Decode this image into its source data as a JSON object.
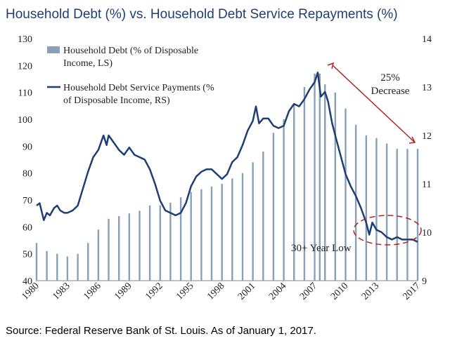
{
  "chart_data": {
    "type": "bar",
    "title": "Household Debt (%) vs. Household Debt Service Repayments (%)",
    "source": "Source: Federal Reserve Bank of St. Louis. As of January 1, 2017.",
    "x_ticks": [
      "1980",
      "1983",
      "1986",
      "1989",
      "1992",
      "1995",
      "1998",
      "2001",
      "2004",
      "2007",
      "2010",
      "2013",
      "2017"
    ],
    "left_axis": {
      "ylim": [
        40,
        130
      ],
      "ticks": [
        40,
        50,
        60,
        70,
        80,
        90,
        100,
        110,
        120,
        130
      ]
    },
    "right_axis": {
      "ylim": [
        9,
        14
      ],
      "ticks": [
        9,
        10,
        11,
        12,
        13,
        14
      ]
    },
    "legend": {
      "bars_line1": "Household Debt (% of Disposable",
      "bars_line2": "Income, LS)",
      "line_line1": "Household Debt Service Payments (%",
      "line_line2": "of Disposable Income, RS)"
    },
    "annotations": {
      "decrease_line1": "25%",
      "decrease_line2": "Decrease",
      "low_label": "30+ Year Low"
    },
    "colors": {
      "bars": "#8aa0b8",
      "line": "#1f3f73",
      "annotation": "#b22222",
      "title": "#1f3f73"
    },
    "series": [
      {
        "name": "Household Debt (% of Disposable Income, LS)",
        "axis": "left",
        "style": "bar",
        "points": [
          [
            1980.0,
            54
          ],
          [
            1981.0,
            51
          ],
          [
            1982.0,
            50
          ],
          [
            1983.0,
            49
          ],
          [
            1984.0,
            50
          ],
          [
            1985.0,
            54
          ],
          [
            1986.0,
            59
          ],
          [
            1987.0,
            63
          ],
          [
            1988.0,
            64
          ],
          [
            1989.0,
            65
          ],
          [
            1990.0,
            66
          ],
          [
            1991.0,
            68
          ],
          [
            1992.0,
            68
          ],
          [
            1993.0,
            69
          ],
          [
            1994.0,
            71
          ],
          [
            1995.0,
            73
          ],
          [
            1996.0,
            74
          ],
          [
            1997.0,
            75
          ],
          [
            1998.0,
            76
          ],
          [
            1999.0,
            78
          ],
          [
            2000.0,
            80
          ],
          [
            2001.0,
            84
          ],
          [
            2002.0,
            88
          ],
          [
            2003.0,
            95
          ],
          [
            2004.0,
            100
          ],
          [
            2005.0,
            106
          ],
          [
            2006.0,
            112
          ],
          [
            2007.0,
            117
          ],
          [
            2007.5,
            117
          ],
          [
            2008.0,
            113
          ],
          [
            2009.0,
            110
          ],
          [
            2010.0,
            104
          ],
          [
            2011.0,
            98
          ],
          [
            2012.0,
            94
          ],
          [
            2013.0,
            93
          ],
          [
            2014.0,
            91
          ],
          [
            2015.0,
            89
          ],
          [
            2016.0,
            89
          ],
          [
            2017.0,
            89
          ]
        ]
      },
      {
        "name": "Household Debt Service Payments (% of Disposable Income, RS)",
        "axis": "right",
        "style": "line",
        "points": [
          [
            1980.0,
            10.55
          ],
          [
            1980.3,
            10.6
          ],
          [
            1980.7,
            10.25
          ],
          [
            1981.0,
            10.4
          ],
          [
            1981.3,
            10.35
          ],
          [
            1981.7,
            10.5
          ],
          [
            1982.0,
            10.55
          ],
          [
            1982.3,
            10.45
          ],
          [
            1982.7,
            10.4
          ],
          [
            1983.0,
            10.4
          ],
          [
            1983.5,
            10.45
          ],
          [
            1984.0,
            10.55
          ],
          [
            1984.5,
            10.9
          ],
          [
            1985.0,
            11.25
          ],
          [
            1985.5,
            11.55
          ],
          [
            1986.0,
            11.7
          ],
          [
            1986.5,
            12.0
          ],
          [
            1986.8,
            11.8
          ],
          [
            1987.0,
            12.0
          ],
          [
            1987.5,
            11.85
          ],
          [
            1988.0,
            11.7
          ],
          [
            1988.5,
            11.6
          ],
          [
            1989.0,
            11.75
          ],
          [
            1989.5,
            11.6
          ],
          [
            1990.0,
            11.55
          ],
          [
            1990.5,
            11.5
          ],
          [
            1991.0,
            11.3
          ],
          [
            1991.5,
            11.0
          ],
          [
            1992.0,
            10.65
          ],
          [
            1992.5,
            10.45
          ],
          [
            1993.0,
            10.4
          ],
          [
            1993.5,
            10.35
          ],
          [
            1994.0,
            10.4
          ],
          [
            1994.5,
            10.6
          ],
          [
            1995.0,
            10.95
          ],
          [
            1995.5,
            11.15
          ],
          [
            1996.0,
            11.25
          ],
          [
            1996.5,
            11.3
          ],
          [
            1997.0,
            11.3
          ],
          [
            1997.5,
            11.2
          ],
          [
            1998.0,
            11.1
          ],
          [
            1998.5,
            11.2
          ],
          [
            1999.0,
            11.45
          ],
          [
            1999.5,
            11.55
          ],
          [
            2000.0,
            11.8
          ],
          [
            2000.5,
            12.1
          ],
          [
            2001.0,
            12.3
          ],
          [
            2001.3,
            12.6
          ],
          [
            2001.6,
            12.25
          ],
          [
            2002.0,
            12.35
          ],
          [
            2002.5,
            12.35
          ],
          [
            2003.0,
            12.2
          ],
          [
            2003.5,
            12.15
          ],
          [
            2004.0,
            12.2
          ],
          [
            2004.5,
            12.5
          ],
          [
            2005.0,
            12.65
          ],
          [
            2005.5,
            12.6
          ],
          [
            2006.0,
            12.75
          ],
          [
            2006.5,
            12.95
          ],
          [
            2007.0,
            13.1
          ],
          [
            2007.3,
            13.3
          ],
          [
            2007.6,
            12.8
          ],
          [
            2008.0,
            12.9
          ],
          [
            2008.3,
            12.7
          ],
          [
            2008.7,
            12.25
          ],
          [
            2009.0,
            12.0
          ],
          [
            2009.5,
            11.6
          ],
          [
            2010.0,
            11.2
          ],
          [
            2010.5,
            10.95
          ],
          [
            2011.0,
            10.75
          ],
          [
            2011.5,
            10.5
          ],
          [
            2012.0,
            10.2
          ],
          [
            2012.3,
            9.95
          ],
          [
            2012.6,
            10.2
          ],
          [
            2013.0,
            10.05
          ],
          [
            2013.5,
            10.0
          ],
          [
            2014.0,
            9.9
          ],
          [
            2014.5,
            9.85
          ],
          [
            2015.0,
            9.9
          ],
          [
            2015.5,
            9.85
          ],
          [
            2016.0,
            9.85
          ],
          [
            2016.5,
            9.85
          ],
          [
            2017.0,
            9.8
          ]
        ]
      }
    ]
  }
}
